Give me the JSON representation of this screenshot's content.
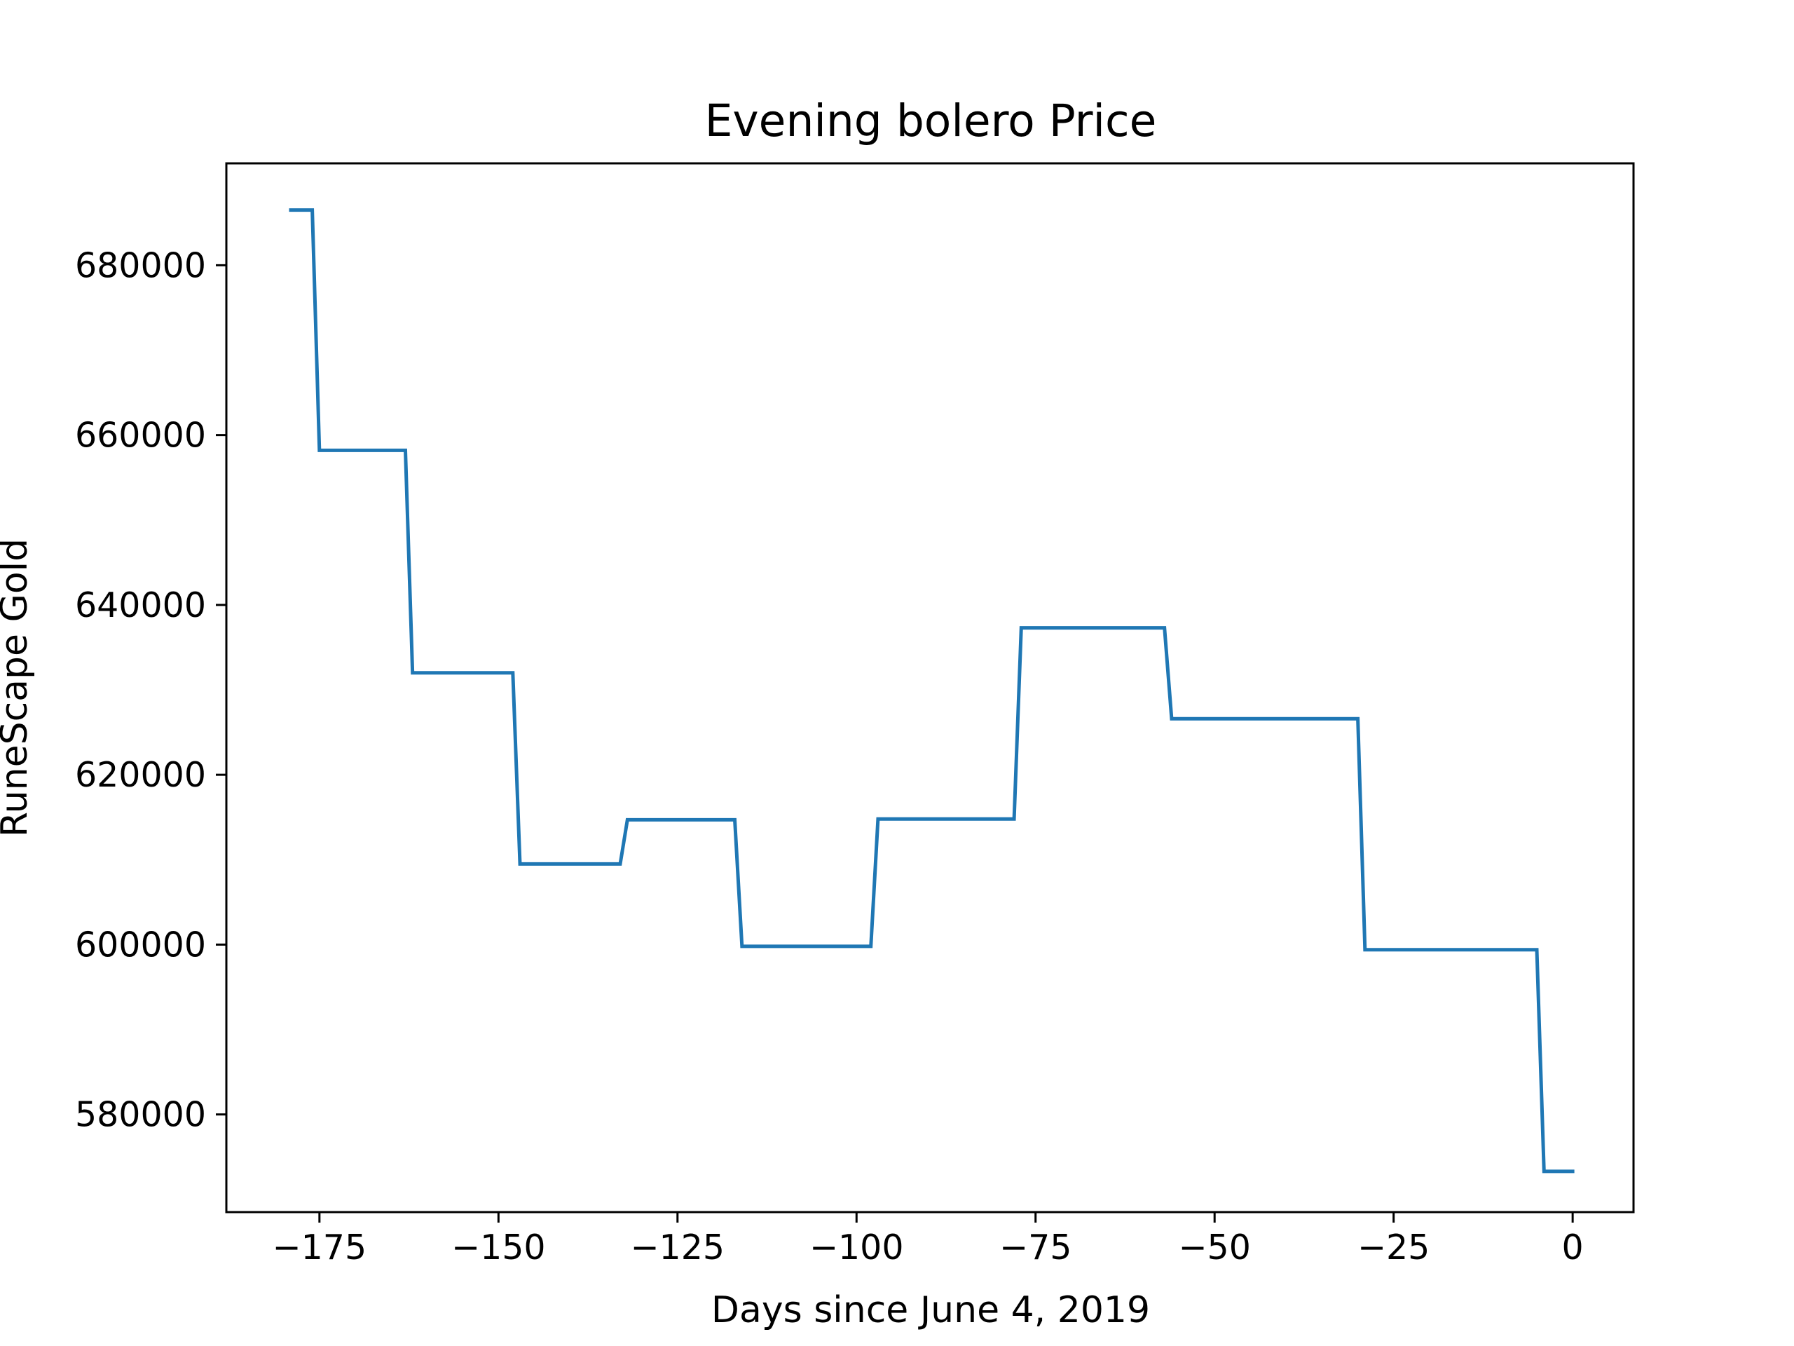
{
  "chart_data": {
    "type": "line",
    "title": "Evening bolero Price",
    "xlabel": "Days since June 4, 2019",
    "ylabel": "RuneScape Gold",
    "xlim": [
      -188,
      8.5
    ],
    "ylim": [
      568500,
      692000
    ],
    "xticks": [
      -175,
      -150,
      -125,
      -100,
      -75,
      -50,
      -25,
      0
    ],
    "xtick_labels": [
      "−175",
      "−150",
      "−125",
      "−100",
      "−75",
      "−50",
      "−25",
      "0"
    ],
    "yticks": [
      580000,
      600000,
      620000,
      640000,
      660000,
      680000
    ],
    "ytick_labels": [
      "580000",
      "600000",
      "620000",
      "640000",
      "660000",
      "680000"
    ],
    "grid": false,
    "legend": "none",
    "line_color": "#1f77b4",
    "series": [
      {
        "name": "Evening bolero",
        "x": [
          -179,
          -176,
          -175,
          -163,
          -162,
          -148,
          -147,
          -133,
          -132,
          -117,
          -116,
          -98,
          -97,
          -78,
          -77,
          -57,
          -56,
          -30,
          -29,
          -5,
          -4,
          0
        ],
        "y": [
          686500,
          686500,
          658200,
          658200,
          632000,
          632000,
          609500,
          609500,
          614700,
          614700,
          599800,
          599800,
          614800,
          614800,
          637300,
          637300,
          626600,
          626600,
          599400,
          599400,
          573300,
          573300
        ]
      }
    ]
  }
}
